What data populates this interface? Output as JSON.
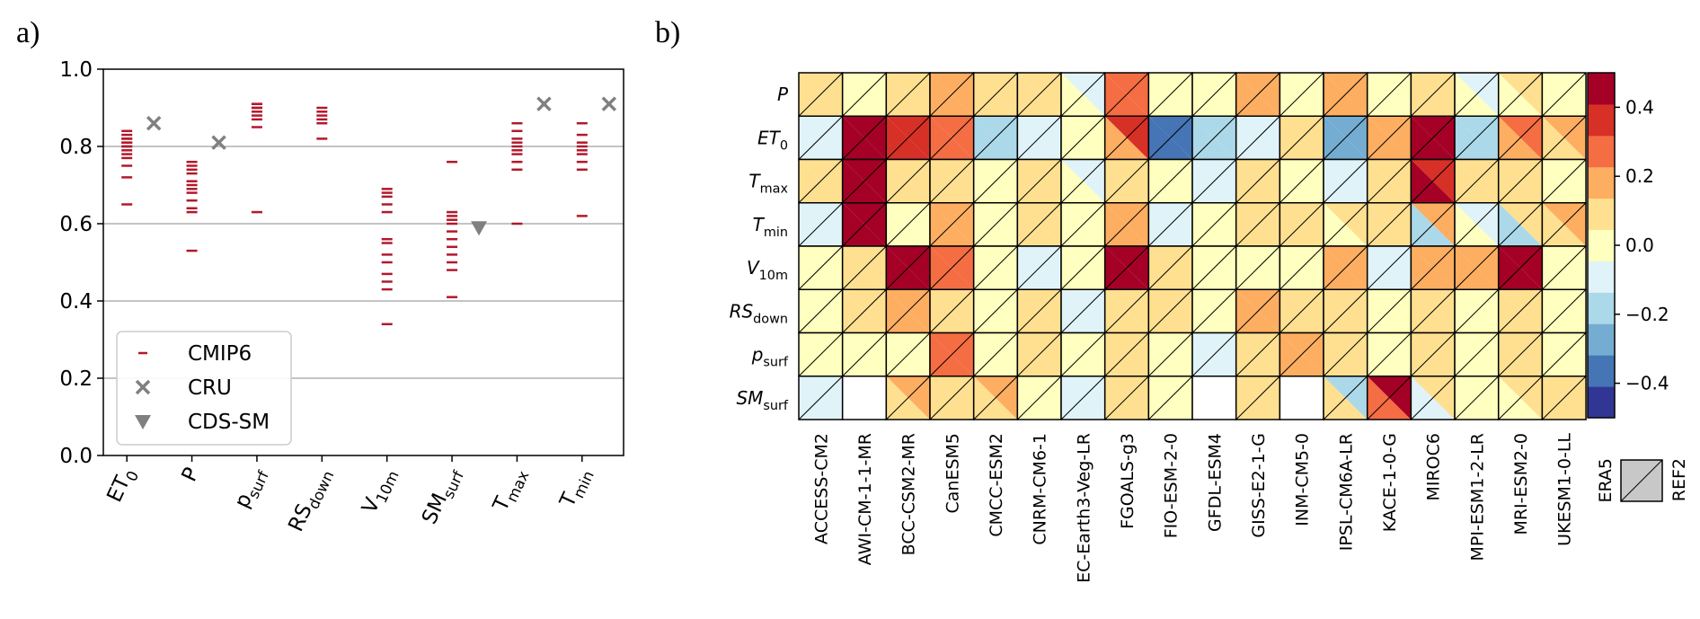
{
  "panel_a_label": "a)",
  "panel_b_label": "b)",
  "chart_data": [
    {
      "type": "scatter",
      "ylim": [
        0,
        1
      ],
      "yticks": [
        "0.0",
        "0.2",
        "0.4",
        "0.6",
        "0.8",
        "1.0"
      ],
      "grid": "horizontal",
      "legend_position": "lower-left",
      "categories": [
        {
          "base": "ET",
          "sub": "0"
        },
        {
          "base": "P",
          "sub": ""
        },
        {
          "base": "p",
          "sub": "surf"
        },
        {
          "base": "RS",
          "sub": "down"
        },
        {
          "base": "V",
          "sub": "10m"
        },
        {
          "base": "SM",
          "sub": "surf"
        },
        {
          "base": "T",
          "sub": "max"
        },
        {
          "base": "T",
          "sub": "min"
        }
      ],
      "series": [
        {
          "name": "CMIP6",
          "marker": "dash",
          "color": "#b2182b",
          "values": [
            [
              0.65,
              0.72,
              0.75,
              0.77,
              0.78,
              0.79,
              0.8,
              0.8,
              0.81,
              0.81,
              0.82,
              0.82,
              0.83,
              0.84
            ],
            [
              0.53,
              0.63,
              0.64,
              0.66,
              0.68,
              0.69,
              0.7,
              0.71,
              0.73,
              0.74,
              0.75,
              0.76
            ],
            [
              0.63,
              0.85,
              0.87,
              0.88,
              0.89,
              0.9,
              0.9,
              0.91,
              0.91
            ],
            [
              0.82,
              0.86,
              0.87,
              0.88,
              0.89,
              0.9
            ],
            [
              0.34,
              0.43,
              0.45,
              0.47,
              0.5,
              0.52,
              0.55,
              0.56,
              0.63,
              0.65,
              0.67,
              0.68,
              0.69
            ],
            [
              0.41,
              0.48,
              0.5,
              0.52,
              0.54,
              0.56,
              0.58,
              0.6,
              0.61,
              0.62,
              0.63,
              0.76
            ],
            [
              0.6,
              0.74,
              0.76,
              0.78,
              0.79,
              0.8,
              0.81,
              0.82,
              0.84,
              0.86
            ],
            [
              0.62,
              0.74,
              0.76,
              0.78,
              0.79,
              0.8,
              0.81,
              0.83,
              0.86
            ]
          ]
        },
        {
          "name": "CRU",
          "marker": "x",
          "color": "#808080",
          "points": [
            [
              0,
              0.86
            ],
            [
              1,
              0.81
            ],
            [
              6,
              0.91
            ],
            [
              7,
              0.91
            ]
          ]
        },
        {
          "name": "CDS-SM",
          "marker": "triangle-down",
          "color": "#808080",
          "points": [
            [
              5,
              0.59
            ]
          ]
        }
      ]
    },
    {
      "type": "heatmap",
      "split_legend": [
        "ERA5",
        "REF2"
      ],
      "rows": [
        {
          "base": "P",
          "sub": ""
        },
        {
          "base": "ET",
          "sub": "0"
        },
        {
          "base": "T",
          "sub": "max"
        },
        {
          "base": "T",
          "sub": "min"
        },
        {
          "base": "V",
          "sub": "10m"
        },
        {
          "base": "RS",
          "sub": "down"
        },
        {
          "base": "p",
          "sub": "surf"
        },
        {
          "base": "SM",
          "sub": "surf"
        }
      ],
      "columns": [
        "ACCESS-CM2",
        "AWI-CM-1-1-MR",
        "BCC-CSM2-MR",
        "CanESM5",
        "CMCC-ESM2",
        "CNRM-CM6-1",
        "EC-Earth3-Veg-LR",
        "FGOALS-g3",
        "FIO-ESM-2-0",
        "GFDL-ESM4",
        "GISS-E2-1-G",
        "INM-CM5-0",
        "IPSL-CM6A-LR",
        "KACE-1-0-G",
        "MIROC6",
        "MPI-ESM1-2-LR",
        "MRI-ESM2-0",
        "UKESM1-0-LL"
      ],
      "colorbar": {
        "vmin": -0.5,
        "vmax": 0.5,
        "ticks": [
          "0.4",
          "0.2",
          "0.0",
          "−0.2",
          "−0.4"
        ],
        "tick_values": [
          0.4,
          0.2,
          0.0,
          -0.2,
          -0.4
        ],
        "colors": [
          "#313695",
          "#4575b4",
          "#74add1",
          "#abd9e9",
          "#e0f3f8",
          "#ffffbf",
          "#fee090",
          "#fdae61",
          "#f46d43",
          "#d73027",
          "#a50026"
        ]
      },
      "values_era5": [
        [
          0.05,
          0.0,
          0.05,
          0.15,
          0.05,
          0.05,
          0.0,
          0.3,
          0.0,
          0.0,
          0.15,
          0.0,
          0.15,
          0.0,
          0.05,
          0.0,
          0.0,
          0.0
        ],
        [
          -0.1,
          0.5,
          0.35,
          0.3,
          -0.15,
          -0.05,
          0.0,
          0.2,
          -0.35,
          -0.2,
          -0.1,
          0.05,
          -0.3,
          0.2,
          0.45,
          -0.15,
          0.2,
          0.05
        ],
        [
          0.05,
          0.5,
          0.05,
          0.05,
          0.0,
          0.05,
          0.0,
          0.05,
          0.0,
          -0.05,
          0.05,
          0.0,
          -0.1,
          0.05,
          0.45,
          0.05,
          0.05,
          0.0
        ],
        [
          -0.1,
          0.5,
          0.0,
          0.15,
          0.0,
          0.05,
          0.0,
          0.15,
          -0.05,
          0.0,
          0.05,
          0.05,
          0.0,
          0.05,
          -0.15,
          0.0,
          -0.2,
          0.05
        ],
        [
          0.0,
          0.05,
          0.5,
          0.25,
          0.0,
          -0.05,
          0.0,
          0.5,
          0.05,
          0.0,
          0.0,
          0.0,
          0.15,
          -0.05,
          0.15,
          0.15,
          0.5,
          0.0
        ],
        [
          0.0,
          0.05,
          0.15,
          0.05,
          0.0,
          0.05,
          -0.05,
          0.05,
          0.05,
          0.0,
          0.15,
          0.05,
          0.05,
          0.0,
          0.05,
          0.0,
          0.05,
          0.0
        ],
        [
          0.0,
          0.0,
          0.0,
          0.25,
          0.0,
          0.05,
          0.0,
          0.05,
          0.0,
          -0.05,
          0.05,
          0.15,
          0.05,
          0.0,
          0.05,
          0.0,
          0.05,
          0.0
        ],
        [
          -0.05,
          null,
          0.05,
          0.05,
          0.05,
          0.0,
          -0.05,
          0.05,
          0.0,
          null,
          0.05,
          null,
          0.05,
          0.25,
          -0.05,
          0.0,
          0.0,
          0.05
        ]
      ],
      "values_ref2": [
        [
          0.05,
          0.0,
          0.05,
          0.15,
          0.05,
          0.05,
          -0.05,
          0.3,
          0.0,
          0.0,
          0.15,
          0.0,
          0.15,
          0.0,
          0.05,
          -0.05,
          0.05,
          0.0
        ],
        [
          -0.1,
          0.5,
          0.35,
          0.3,
          -0.15,
          -0.05,
          0.0,
          0.35,
          -0.35,
          -0.2,
          -0.1,
          0.05,
          -0.3,
          0.2,
          0.45,
          -0.15,
          0.25,
          0.15
        ],
        [
          0.05,
          0.5,
          0.05,
          0.05,
          0.0,
          0.05,
          -0.05,
          0.05,
          0.0,
          -0.05,
          0.05,
          0.0,
          -0.1,
          0.05,
          0.35,
          0.05,
          0.05,
          0.0
        ],
        [
          -0.1,
          0.5,
          0.0,
          0.15,
          0.0,
          0.05,
          0.0,
          0.15,
          -0.05,
          0.0,
          0.05,
          0.05,
          0.05,
          0.05,
          0.15,
          -0.05,
          0.05,
          0.15
        ],
        [
          0.0,
          0.05,
          0.5,
          0.25,
          0.0,
          -0.05,
          0.0,
          0.5,
          0.05,
          0.0,
          0.0,
          0.0,
          0.15,
          -0.05,
          0.15,
          0.15,
          0.5,
          0.0
        ],
        [
          0.0,
          0.05,
          0.15,
          0.05,
          0.0,
          0.05,
          -0.05,
          0.05,
          0.05,
          0.0,
          0.15,
          0.05,
          0.05,
          0.0,
          0.05,
          0.0,
          0.05,
          0.0
        ],
        [
          0.0,
          0.0,
          0.0,
          0.25,
          0.0,
          0.05,
          0.0,
          0.05,
          0.0,
          -0.05,
          0.05,
          0.15,
          0.05,
          0.0,
          0.05,
          0.0,
          0.05,
          0.0
        ],
        [
          -0.05,
          null,
          0.15,
          0.05,
          0.15,
          0.0,
          -0.1,
          0.05,
          0.0,
          null,
          0.05,
          null,
          -0.15,
          0.45,
          0.05,
          0.0,
          0.05,
          0.05
        ]
      ]
    }
  ]
}
